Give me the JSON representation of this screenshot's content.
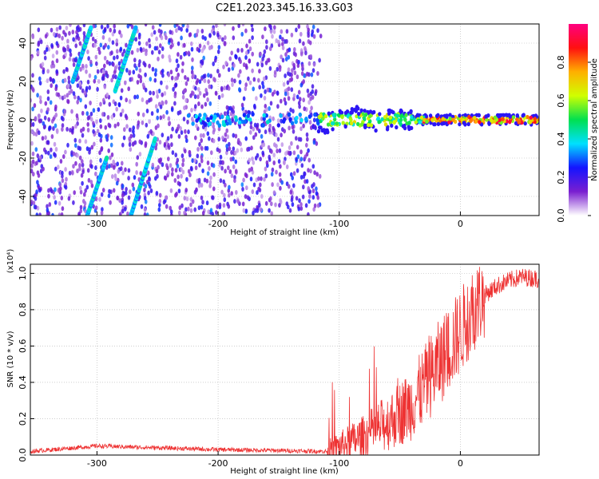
{
  "title": "C2E1.2023.345.16.33.G03",
  "colors": {
    "snr_line": "#ee3333",
    "colorbar": [
      "#ffffff",
      "#7a1fd0",
      "#1414ff",
      "#00e0ff",
      "#00e050",
      "#d0ff00",
      "#ffb000",
      "#ff1010",
      "#ff0080"
    ]
  },
  "chart_data": [
    {
      "type": "heatmap",
      "xlabel": "Height of straight line (km)",
      "ylabel": "Frequency (Hz)",
      "xlim": [
        -355,
        65
      ],
      "ylim": [
        -50,
        50
      ],
      "xticks": [
        -300,
        -200,
        -100,
        0
      ],
      "yticks": [
        40,
        20,
        0,
        -20,
        -40
      ],
      "colorbar": {
        "label": "Normalized spectral amplitude",
        "range": [
          0.0,
          1.0
        ],
        "ticks": [
          "0.0",
          "0.2",
          "0.4",
          "0.6",
          "0.8"
        ]
      },
      "grid": true,
      "features": {
        "noise_region_x": [
          -355,
          -115
        ],
        "streaks": [
          {
            "x": [
              -320,
              -305
            ],
            "y": [
              20,
              48
            ]
          },
          {
            "x": [
              -308,
              -292
            ],
            "y": [
              -50,
              -20
            ]
          },
          {
            "x": [
              -285,
              -268
            ],
            "y": [
              15,
              48
            ]
          },
          {
            "x": [
              -272,
              -252
            ],
            "y": [
              -50,
              -10
            ]
          }
        ],
        "carrier_x": [
          -117,
          65
        ],
        "carrier_y": 0
      }
    },
    {
      "type": "line",
      "xlabel": "Height of straight line (km)",
      "ylabel": "SNR (10 * v/v)",
      "y_multiplier": "(x10⁴)",
      "xlim": [
        -355,
        65
      ],
      "ylim": [
        0,
        1.05
      ],
      "xticks": [
        -300,
        -200,
        -100,
        0
      ],
      "yticks": [
        "0.0",
        "0.2",
        "0.4",
        "0.6",
        "0.8",
        "1.0"
      ],
      "grid": true,
      "trend": {
        "x": [
          -355,
          -300,
          -250,
          -200,
          -150,
          -110,
          -100,
          -80,
          -60,
          -40,
          -30,
          -20,
          -10,
          0,
          10,
          20,
          30,
          40,
          50,
          65
        ],
        "y": [
          0.02,
          0.05,
          0.04,
          0.03,
          0.025,
          0.02,
          0.05,
          0.1,
          0.18,
          0.28,
          0.38,
          0.48,
          0.58,
          0.68,
          0.8,
          0.88,
          0.93,
          0.96,
          0.98,
          0.97
        ]
      }
    }
  ]
}
